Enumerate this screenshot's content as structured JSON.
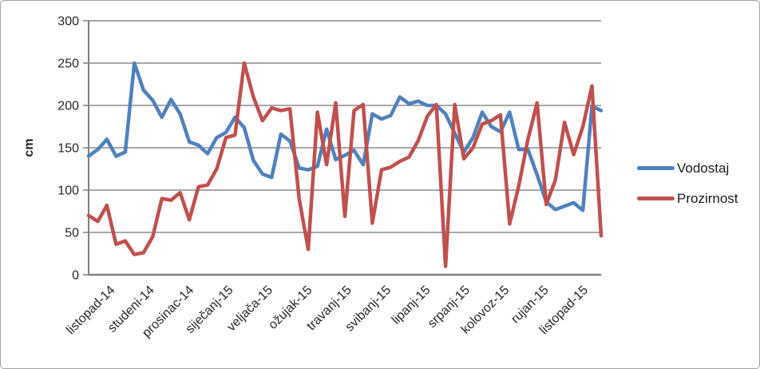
{
  "chart_data": {
    "type": "line",
    "title": "",
    "ylabel": "cm",
    "xlabel": "",
    "ylim": [
      0,
      300
    ],
    "y_ticks": [
      0,
      50,
      100,
      150,
      200,
      250,
      300
    ],
    "grid": true,
    "legend_position": "right",
    "x_labels": [
      "listopad-14",
      "studeni-14",
      "prosinac-14",
      "siječanj-15",
      "veljača-15",
      "ožujak-15",
      "travanj-15",
      "svibanj-15",
      "lipanj-15",
      "srpanj-15",
      "kolovoz-15",
      "rujan-15",
      "listopad-15"
    ],
    "series": [
      {
        "name": "Vodostaj",
        "color": "#4F81BD",
        "values": [
          140,
          148,
          160,
          140,
          145,
          250,
          218,
          206,
          186,
          207,
          190,
          157,
          153,
          143,
          162,
          168,
          186,
          174,
          135,
          119,
          115,
          166,
          158,
          126,
          124,
          128,
          172,
          136,
          141,
          147,
          130,
          190,
          184,
          188,
          210,
          202,
          205,
          200,
          200,
          190,
          167,
          145,
          162,
          192,
          175,
          169,
          192,
          148,
          148,
          118,
          86,
          77,
          81,
          85,
          76,
          199,
          194
        ]
      },
      {
        "name": "Prozirnost",
        "color": "#C0504D",
        "values": [
          70,
          63,
          82,
          36,
          40,
          24,
          26,
          45,
          90,
          88,
          97,
          65,
          104,
          106,
          125,
          162,
          165,
          250,
          210,
          182,
          197,
          194,
          196,
          90,
          30,
          192,
          130,
          203,
          69,
          194,
          201,
          61,
          124,
          127,
          134,
          139,
          158,
          187,
          201,
          10,
          201,
          137,
          150,
          178,
          182,
          189,
          60,
          105,
          160,
          203,
          83,
          112,
          180,
          142,
          175,
          223,
          46
        ]
      }
    ],
    "colors": {
      "grid": "#8C8C8C",
      "axis": "#808080",
      "text": "#262626",
      "border": "#A3A3A3",
      "background": "#FFFFFF"
    }
  }
}
